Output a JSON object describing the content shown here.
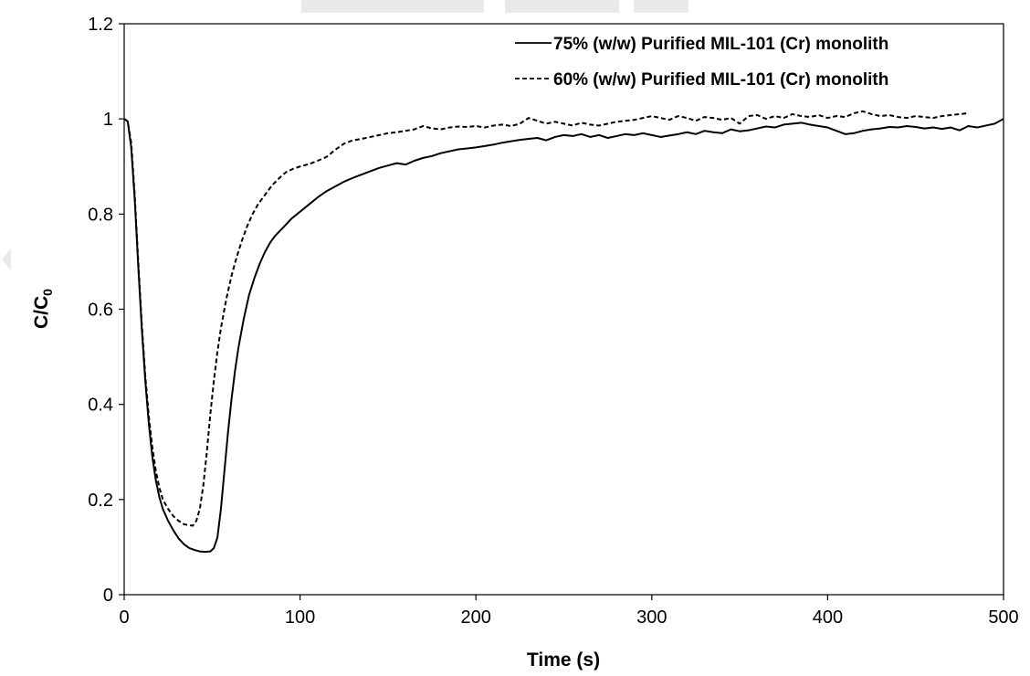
{
  "chart_data": {
    "type": "line",
    "title": "",
    "xlabel": "Time (s)",
    "ylabel_main": "C/C",
    "ylabel_sub": "0",
    "xlim": [
      0,
      500
    ],
    "ylim": [
      0,
      1.2
    ],
    "x_ticks": [
      "0",
      "100",
      "200",
      "300",
      "400",
      "500"
    ],
    "y_ticks": [
      "0",
      "0.2",
      "0.4",
      "0.6",
      "0.8",
      "1",
      "1.2"
    ],
    "grid": false,
    "legend_position": "top-right",
    "series": [
      {
        "name": "75% (w/w) Purified MIL-101 (Cr) monolith",
        "line_style": "solid",
        "color": "#000000",
        "points": [
          [
            0,
            1.0
          ],
          [
            2,
            0.995
          ],
          [
            4,
            0.94
          ],
          [
            6,
            0.83
          ],
          [
            8,
            0.69
          ],
          [
            10,
            0.56
          ],
          [
            12,
            0.45
          ],
          [
            14,
            0.36
          ],
          [
            16,
            0.29
          ],
          [
            18,
            0.24
          ],
          [
            20,
            0.205
          ],
          [
            22,
            0.18
          ],
          [
            25,
            0.155
          ],
          [
            28,
            0.135
          ],
          [
            31,
            0.118
          ],
          [
            34,
            0.106
          ],
          [
            37,
            0.098
          ],
          [
            40,
            0.094
          ],
          [
            43,
            0.091
          ],
          [
            46,
            0.09
          ],
          [
            49,
            0.091
          ],
          [
            51,
            0.098
          ],
          [
            53,
            0.12
          ],
          [
            55,
            0.18
          ],
          [
            57,
            0.26
          ],
          [
            59,
            0.34
          ],
          [
            61,
            0.41
          ],
          [
            63,
            0.47
          ],
          [
            65,
            0.52
          ],
          [
            68,
            0.58
          ],
          [
            71,
            0.63
          ],
          [
            74,
            0.665
          ],
          [
            77,
            0.695
          ],
          [
            80,
            0.72
          ],
          [
            83,
            0.74
          ],
          [
            86,
            0.755
          ],
          [
            90,
            0.77
          ],
          [
            95,
            0.79
          ],
          [
            100,
            0.805
          ],
          [
            105,
            0.82
          ],
          [
            110,
            0.835
          ],
          [
            115,
            0.848
          ],
          [
            120,
            0.858
          ],
          [
            125,
            0.868
          ],
          [
            130,
            0.876
          ],
          [
            135,
            0.883
          ],
          [
            140,
            0.89
          ],
          [
            145,
            0.897
          ],
          [
            150,
            0.902
          ],
          [
            155,
            0.907
          ],
          [
            160,
            0.904
          ],
          [
            165,
            0.912
          ],
          [
            170,
            0.918
          ],
          [
            175,
            0.922
          ],
          [
            180,
            0.928
          ],
          [
            185,
            0.932
          ],
          [
            190,
            0.936
          ],
          [
            195,
            0.938
          ],
          [
            200,
            0.94
          ],
          [
            205,
            0.943
          ],
          [
            210,
            0.946
          ],
          [
            215,
            0.95
          ],
          [
            220,
            0.953
          ],
          [
            225,
            0.956
          ],
          [
            230,
            0.958
          ],
          [
            235,
            0.96
          ],
          [
            240,
            0.955
          ],
          [
            245,
            0.962
          ],
          [
            250,
            0.966
          ],
          [
            255,
            0.964
          ],
          [
            260,
            0.968
          ],
          [
            265,
            0.962
          ],
          [
            270,
            0.966
          ],
          [
            275,
            0.96
          ],
          [
            280,
            0.964
          ],
          [
            285,
            0.968
          ],
          [
            290,
            0.966
          ],
          [
            295,
            0.97
          ],
          [
            300,
            0.966
          ],
          [
            305,
            0.962
          ],
          [
            310,
            0.965
          ],
          [
            315,
            0.968
          ],
          [
            320,
            0.972
          ],
          [
            325,
            0.968
          ],
          [
            330,
            0.975
          ],
          [
            335,
            0.972
          ],
          [
            340,
            0.97
          ],
          [
            345,
            0.978
          ],
          [
            350,
            0.974
          ],
          [
            355,
            0.976
          ],
          [
            360,
            0.98
          ],
          [
            365,
            0.984
          ],
          [
            370,
            0.982
          ],
          [
            375,
            0.988
          ],
          [
            380,
            0.99
          ],
          [
            385,
            0.992
          ],
          [
            390,
            0.988
          ],
          [
            395,
            0.985
          ],
          [
            400,
            0.982
          ],
          [
            405,
            0.975
          ],
          [
            410,
            0.968
          ],
          [
            415,
            0.97
          ],
          [
            420,
            0.975
          ],
          [
            425,
            0.978
          ],
          [
            430,
            0.98
          ],
          [
            435,
            0.983
          ],
          [
            440,
            0.982
          ],
          [
            445,
            0.985
          ],
          [
            450,
            0.983
          ],
          [
            455,
            0.98
          ],
          [
            460,
            0.982
          ],
          [
            465,
            0.979
          ],
          [
            470,
            0.982
          ],
          [
            475,
            0.976
          ],
          [
            480,
            0.985
          ],
          [
            485,
            0.982
          ],
          [
            490,
            0.986
          ],
          [
            495,
            0.99
          ],
          [
            500,
            1.0
          ]
        ]
      },
      {
        "name": "60% (w/w) Purified MIL-101 (Cr) monolith",
        "line_style": "dashed",
        "color": "#000000",
        "points": [
          [
            0,
            1.0
          ],
          [
            2,
            0.995
          ],
          [
            4,
            0.95
          ],
          [
            6,
            0.84
          ],
          [
            8,
            0.7
          ],
          [
            10,
            0.57
          ],
          [
            12,
            0.46
          ],
          [
            14,
            0.375
          ],
          [
            16,
            0.31
          ],
          [
            18,
            0.26
          ],
          [
            20,
            0.225
          ],
          [
            22,
            0.2
          ],
          [
            25,
            0.18
          ],
          [
            28,
            0.165
          ],
          [
            31,
            0.155
          ],
          [
            34,
            0.148
          ],
          [
            37,
            0.146
          ],
          [
            39,
            0.145
          ],
          [
            41,
            0.155
          ],
          [
            43,
            0.18
          ],
          [
            45,
            0.23
          ],
          [
            47,
            0.3
          ],
          [
            49,
            0.38
          ],
          [
            51,
            0.45
          ],
          [
            53,
            0.51
          ],
          [
            55,
            0.56
          ],
          [
            58,
            0.62
          ],
          [
            61,
            0.67
          ],
          [
            64,
            0.71
          ],
          [
            67,
            0.745
          ],
          [
            70,
            0.775
          ],
          [
            73,
            0.8
          ],
          [
            76,
            0.82
          ],
          [
            80,
            0.84
          ],
          [
            84,
            0.86
          ],
          [
            88,
            0.875
          ],
          [
            92,
            0.888
          ],
          [
            96,
            0.895
          ],
          [
            100,
            0.9
          ],
          [
            105,
            0.905
          ],
          [
            110,
            0.912
          ],
          [
            115,
            0.92
          ],
          [
            120,
            0.935
          ],
          [
            125,
            0.948
          ],
          [
            130,
            0.955
          ],
          [
            135,
            0.958
          ],
          [
            140,
            0.962
          ],
          [
            145,
            0.966
          ],
          [
            150,
            0.97
          ],
          [
            155,
            0.972
          ],
          [
            160,
            0.975
          ],
          [
            165,
            0.978
          ],
          [
            170,
            0.985
          ],
          [
            175,
            0.98
          ],
          [
            180,
            0.978
          ],
          [
            185,
            0.982
          ],
          [
            190,
            0.984
          ],
          [
            195,
            0.983
          ],
          [
            200,
            0.985
          ],
          [
            205,
            0.982
          ],
          [
            210,
            0.986
          ],
          [
            215,
            0.988
          ],
          [
            220,
            0.985
          ],
          [
            225,
            0.99
          ],
          [
            230,
            1.002
          ],
          [
            235,
            0.996
          ],
          [
            240,
            0.99
          ],
          [
            245,
            0.994
          ],
          [
            250,
            0.99
          ],
          [
            255,
            0.986
          ],
          [
            260,
            0.992
          ],
          [
            265,
            0.988
          ],
          [
            270,
            0.986
          ],
          [
            275,
            0.99
          ],
          [
            280,
            0.994
          ],
          [
            285,
            0.996
          ],
          [
            290,
            0.998
          ],
          [
            295,
            1.002
          ],
          [
            300,
            1.006
          ],
          [
            305,
            1.002
          ],
          [
            310,
            0.998
          ],
          [
            315,
            1.006
          ],
          [
            320,
            1.002
          ],
          [
            325,
            0.996
          ],
          [
            330,
            1.004
          ],
          [
            335,
            1.002
          ],
          [
            340,
            0.998
          ],
          [
            345,
            1.002
          ],
          [
            350,
            0.99
          ],
          [
            355,
            1.006
          ],
          [
            360,
            1.008
          ],
          [
            365,
            1.0
          ],
          [
            370,
            1.006
          ],
          [
            375,
            1.002
          ],
          [
            380,
            1.01
          ],
          [
            385,
            1.006
          ],
          [
            390,
            1.004
          ],
          [
            395,
            1.008
          ],
          [
            400,
            1.002
          ],
          [
            405,
            1.006
          ],
          [
            410,
            1.004
          ],
          [
            415,
            1.012
          ],
          [
            420,
            1.016
          ],
          [
            425,
            1.01
          ],
          [
            430,
            1.006
          ],
          [
            435,
            1.008
          ],
          [
            440,
            1.004
          ],
          [
            445,
            1.002
          ],
          [
            450,
            1.006
          ],
          [
            455,
            1.004
          ],
          [
            460,
            1.002
          ],
          [
            465,
            1.006
          ],
          [
            470,
            1.008
          ],
          [
            475,
            1.01
          ],
          [
            480,
            1.012
          ]
        ]
      }
    ]
  }
}
